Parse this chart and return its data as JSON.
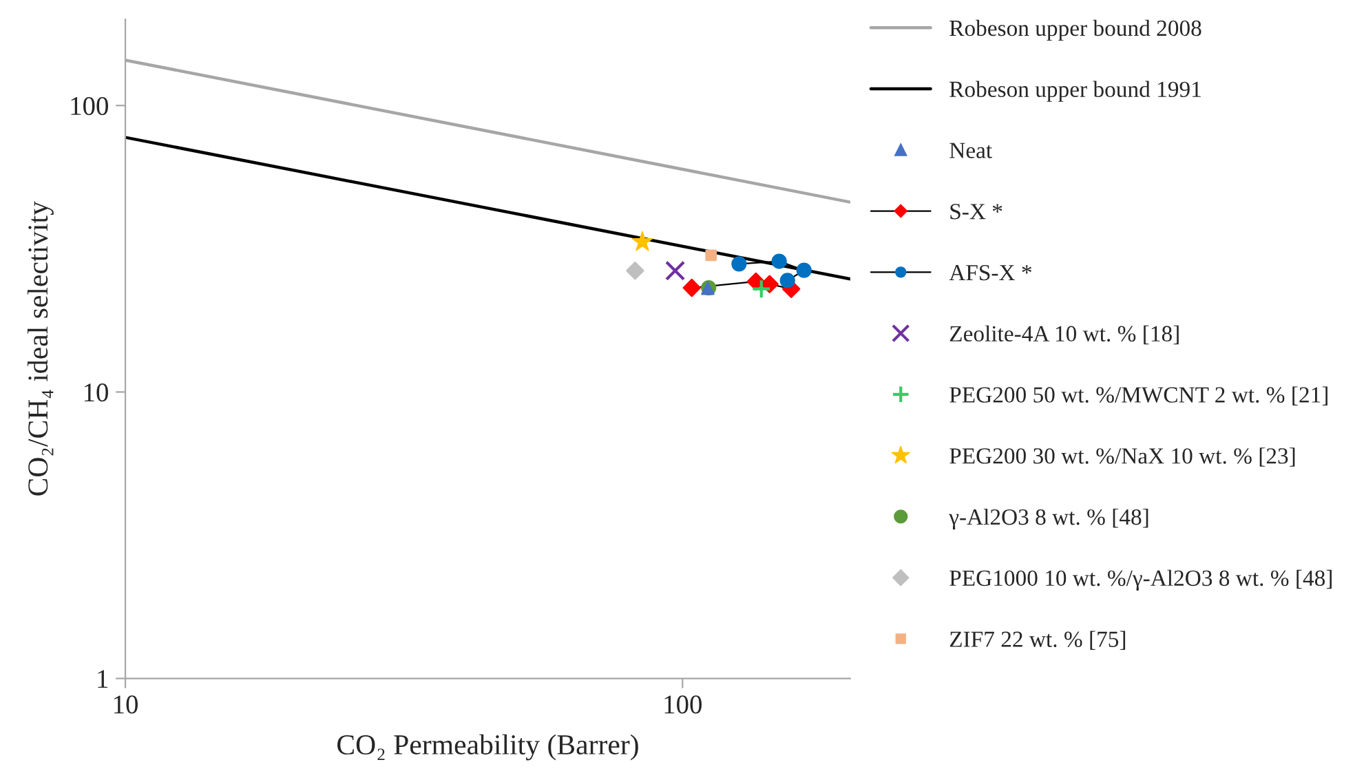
{
  "chart_data": {
    "type": "scatter",
    "xlabel": "CO₂ Permeability (Barrer)",
    "ylabel": "CO₂/CH₄ ideal selectivity",
    "log": "xy",
    "xlim": [
      10,
      200
    ],
    "ylim": [
      1,
      200
    ],
    "xticks": [
      10,
      100
    ],
    "yticks": [
      1,
      10,
      100
    ],
    "grid": false,
    "legend": "right",
    "series": [
      {
        "name": "Robeson upper bound 2008",
        "type": "line",
        "color": "#a6a6a6",
        "marker": "none",
        "line_style": "solid",
        "x": [
          10,
          200
        ],
        "values": [
          144,
          46
        ]
      },
      {
        "name": "Robeson upper bound 1991",
        "type": "line",
        "color": "#000000",
        "marker": "none",
        "line_style": "solid",
        "x": [
          10,
          200
        ],
        "values": [
          77.4,
          24.8
        ]
      },
      {
        "name": "Neat",
        "type": "scatter",
        "color": "#4472c4",
        "marker": "triangle",
        "x": [
          111
        ],
        "values": [
          23
        ]
      },
      {
        "name": "S-X *",
        "type": "line",
        "color": "#ff0000",
        "marker": "diamond",
        "line_style": "solid",
        "x": [
          103.9,
          135.4,
          143.3,
          156.7
        ],
        "values": [
          23.1,
          24.3,
          23.8,
          22.9
        ]
      },
      {
        "name": "AFS-X *",
        "type": "line",
        "color": "#0070c0",
        "marker": "circle",
        "line_style": "solid",
        "x": [
          126.3,
          149.1,
          165.2,
          154.3
        ],
        "values": [
          28.0,
          28.6,
          26.6,
          24.5
        ]
      },
      {
        "name": "Zeolite-4A 10 wt. % [18]",
        "type": "scatter",
        "color": "#7030a0",
        "marker": "cross",
        "x": [
          97.0
        ],
        "values": [
          26.5
        ]
      },
      {
        "name": "PEG200 50 wt. %/MWCNT 2 wt. % [21]",
        "type": "scatter",
        "color": "#33cc66",
        "marker": "plus",
        "x": [
          138.5
        ],
        "values": [
          22.9
        ]
      },
      {
        "name": "PEG200 30 wt. %/NaX 10 wt. % [23]",
        "type": "scatter",
        "color": "#ffc000",
        "marker": "star",
        "x": [
          84.7
        ],
        "values": [
          33.4
        ]
      },
      {
        "name": "γ-Al2O3 8 wt. % [48]",
        "type": "scatter",
        "color": "#5b9b3a",
        "marker": "circle",
        "x": [
          111.4
        ],
        "values": [
          23.1
        ]
      },
      {
        "name": "PEG1000 10 wt. %/γ-Al2O3 8 wt. % [48]",
        "type": "scatter",
        "color": "#bfbfbf",
        "marker": "diamond",
        "x": [
          82.2
        ],
        "values": [
          26.5
        ]
      },
      {
        "name": "ZIF7 22 wt. % [75]",
        "type": "scatter",
        "color": "#f4b183",
        "marker": "square",
        "x": [
          112.5
        ],
        "values": [
          30.0
        ]
      }
    ]
  }
}
